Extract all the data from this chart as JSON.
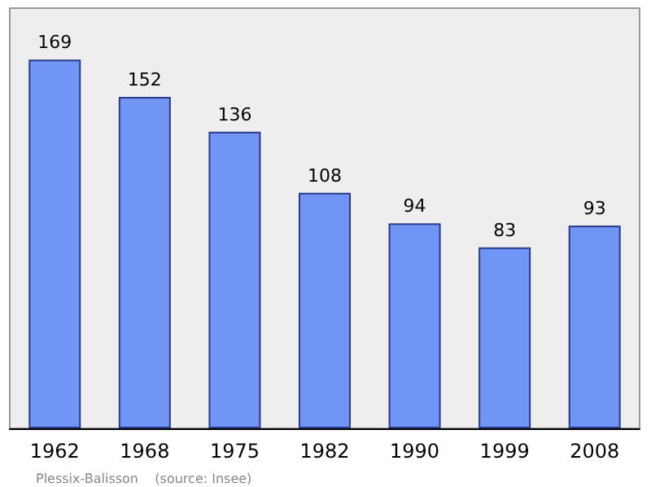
{
  "chart_data": {
    "type": "bar",
    "categories": [
      "1962",
      "1968",
      "1975",
      "1982",
      "1990",
      "1999",
      "2008"
    ],
    "values": [
      169,
      152,
      136,
      108,
      94,
      83,
      93
    ],
    "color": "#7095f5",
    "data_labels": true,
    "grid": false,
    "annotations": [
      "Plessix-Balisson    (source: Insee)"
    ]
  }
}
